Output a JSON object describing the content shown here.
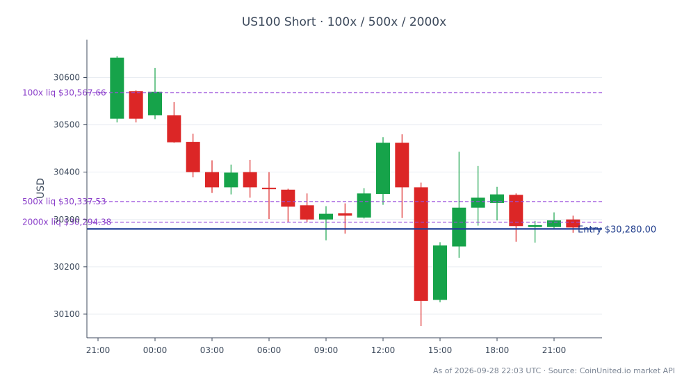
{
  "chart_data": {
    "type": "candlestick",
    "title": "US100 Short · 100x / 500x / 2000x",
    "ylabel": "USD",
    "xlabel": "",
    "x_ticks": [
      "21:00",
      "00:00",
      "03:00",
      "06:00",
      "09:00",
      "12:00",
      "15:00",
      "18:00",
      "21:00"
    ],
    "y_ticks": [
      "30100",
      "30200",
      "30300",
      "30400",
      "30500",
      "30600"
    ],
    "ylim": [
      30050,
      30680
    ],
    "grid": "horizontal",
    "colors": {
      "up": "#16a34a",
      "down": "#dc2626",
      "liq": "#9b4fdc",
      "entry": "#1f3c96",
      "axis": "#3d4a5c",
      "grid": "#e9edf2"
    },
    "candles": [
      {
        "t": "22:00",
        "o": 30513,
        "h": 30645,
        "l": 30505,
        "c": 30642
      },
      {
        "t": "23:00",
        "o": 30571,
        "h": 30573,
        "l": 30505,
        "c": 30513
      },
      {
        "t": "00:00",
        "o": 30520,
        "h": 30620,
        "l": 30512,
        "c": 30570
      },
      {
        "t": "01:00",
        "o": 30520,
        "h": 30548,
        "l": 30462,
        "c": 30463
      },
      {
        "t": "02:00",
        "o": 30464,
        "h": 30481,
        "l": 30389,
        "c": 30400
      },
      {
        "t": "03:00",
        "o": 30400,
        "h": 30425,
        "l": 30356,
        "c": 30368
      },
      {
        "t": "04:00",
        "o": 30368,
        "h": 30416,
        "l": 30353,
        "c": 30399
      },
      {
        "t": "05:00",
        "o": 30400,
        "h": 30426,
        "l": 30346,
        "c": 30368
      },
      {
        "t": "06:00",
        "o": 30367,
        "h": 30400,
        "l": 30301,
        "c": 30364
      },
      {
        "t": "07:00",
        "o": 30363,
        "h": 30365,
        "l": 30294,
        "c": 30327
      },
      {
        "t": "08:00",
        "o": 30330,
        "h": 30355,
        "l": 30294,
        "c": 30300
      },
      {
        "t": "09:00",
        "o": 30300,
        "h": 30328,
        "l": 30256,
        "c": 30312
      },
      {
        "t": "10:00",
        "o": 30313,
        "h": 30334,
        "l": 30270,
        "c": 30308
      },
      {
        "t": "11:00",
        "o": 30304,
        "h": 30366,
        "l": 30302,
        "c": 30355
      },
      {
        "t": "12:00",
        "o": 30354,
        "h": 30474,
        "l": 30331,
        "c": 30462
      },
      {
        "t": "13:00",
        "o": 30462,
        "h": 30480,
        "l": 30303,
        "c": 30368
      },
      {
        "t": "14:00",
        "o": 30368,
        "h": 30378,
        "l": 30075,
        "c": 30128
      },
      {
        "t": "15:00",
        "o": 30130,
        "h": 30252,
        "l": 30125,
        "c": 30245
      },
      {
        "t": "16:00",
        "o": 30243,
        "h": 30443,
        "l": 30219,
        "c": 30325
      },
      {
        "t": "17:00",
        "o": 30325,
        "h": 30413,
        "l": 30287,
        "c": 30346
      },
      {
        "t": "18:00",
        "o": 30335,
        "h": 30369,
        "l": 30298,
        "c": 30353
      },
      {
        "t": "19:00",
        "o": 30352,
        "h": 30355,
        "l": 30253,
        "c": 30286
      },
      {
        "t": "20:00",
        "o": 30284,
        "h": 30297,
        "l": 30251,
        "c": 30288
      },
      {
        "t": "21:00",
        "o": 30284,
        "h": 30315,
        "l": 30281,
        "c": 30298
      },
      {
        "t": "22:00",
        "o": 30300,
        "h": 30308,
        "l": 30272,
        "c": 30283
      }
    ],
    "liquidation_lines": [
      {
        "label": "100x liq $30,567.66",
        "value": 30567.66
      },
      {
        "label": "500x liq $30,337.53",
        "value": 30337.53
      },
      {
        "label": "2000x liq $30,294.38",
        "value": 30294.38
      }
    ],
    "entry_line": {
      "label": "Entry $30,280.00",
      "value": 30280.0
    },
    "footer": "As of 2026-09-28 22:03 UTC · Source: CoinUnited.io market API"
  }
}
